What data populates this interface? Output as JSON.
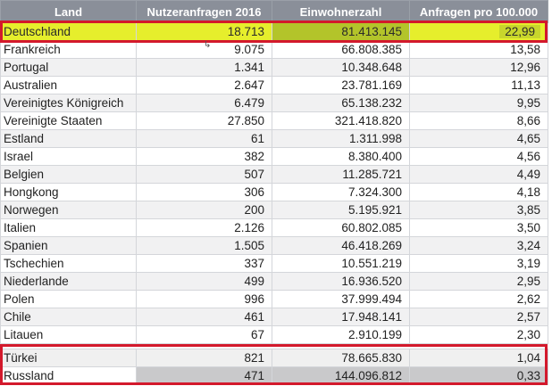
{
  "table": {
    "headers": [
      "Land",
      "Nutzeranfragen 2016",
      "Einwohnerzahl",
      "Anfragen pro 100.000"
    ],
    "highlight_row": {
      "land": "Deutschland",
      "anfragen": "18.713",
      "einwohner": "81.413.145",
      "pro100k": "22,99"
    },
    "rows": [
      {
        "land": "Frankreich",
        "anfragen": "9.075",
        "einwohner": "66.808.385",
        "pro100k": "13,58"
      },
      {
        "land": "Portugal",
        "anfragen": "1.341",
        "einwohner": "10.348.648",
        "pro100k": "12,96"
      },
      {
        "land": "Australien",
        "anfragen": "2.647",
        "einwohner": "23.781.169",
        "pro100k": "11,13"
      },
      {
        "land": "Vereinigtes Königreich",
        "anfragen": "6.479",
        "einwohner": "65.138.232",
        "pro100k": "9,95"
      },
      {
        "land": "Vereinigte Staaten",
        "anfragen": "27.850",
        "einwohner": "321.418.820",
        "pro100k": "8,66"
      },
      {
        "land": "Estland",
        "anfragen": "61",
        "einwohner": "1.311.998",
        "pro100k": "4,65"
      },
      {
        "land": "Israel",
        "anfragen": "382",
        "einwohner": "8.380.400",
        "pro100k": "4,56"
      },
      {
        "land": "Belgien",
        "anfragen": "507",
        "einwohner": "11.285.721",
        "pro100k": "4,49"
      },
      {
        "land": "Hongkong",
        "anfragen": "306",
        "einwohner": "7.324.300",
        "pro100k": "4,18"
      },
      {
        "land": "Norwegen",
        "anfragen": "200",
        "einwohner": "5.195.921",
        "pro100k": "3,85"
      },
      {
        "land": "Italien",
        "anfragen": "2.126",
        "einwohner": "60.802.085",
        "pro100k": "3,50"
      },
      {
        "land": "Spanien",
        "anfragen": "1.505",
        "einwohner": "46.418.269",
        "pro100k": "3,24"
      },
      {
        "land": "Tschechien",
        "anfragen": "337",
        "einwohner": "10.551.219",
        "pro100k": "3,19"
      },
      {
        "land": "Niederlande",
        "anfragen": "499",
        "einwohner": "16.936.520",
        "pro100k": "2,95"
      },
      {
        "land": "Polen",
        "anfragen": "996",
        "einwohner": "37.999.494",
        "pro100k": "2,62"
      },
      {
        "land": "Chile",
        "anfragen": "461",
        "einwohner": "17.948.141",
        "pro100k": "2,57"
      },
      {
        "land": "Litauen",
        "anfragen": "67",
        "einwohner": "2.910.199",
        "pro100k": "2,30"
      }
    ],
    "bottom_rows": [
      {
        "land": "Türkei",
        "anfragen": "821",
        "einwohner": "78.665.830",
        "pro100k": "1,04"
      },
      {
        "land": "Russland",
        "anfragen": "471",
        "einwohner": "144.096.812",
        "pro100k": "0,33"
      }
    ]
  },
  "colors": {
    "header_bg": "#8a8f99",
    "highlight_yellow": "#e6ee2c",
    "box_red": "#d3192c"
  }
}
